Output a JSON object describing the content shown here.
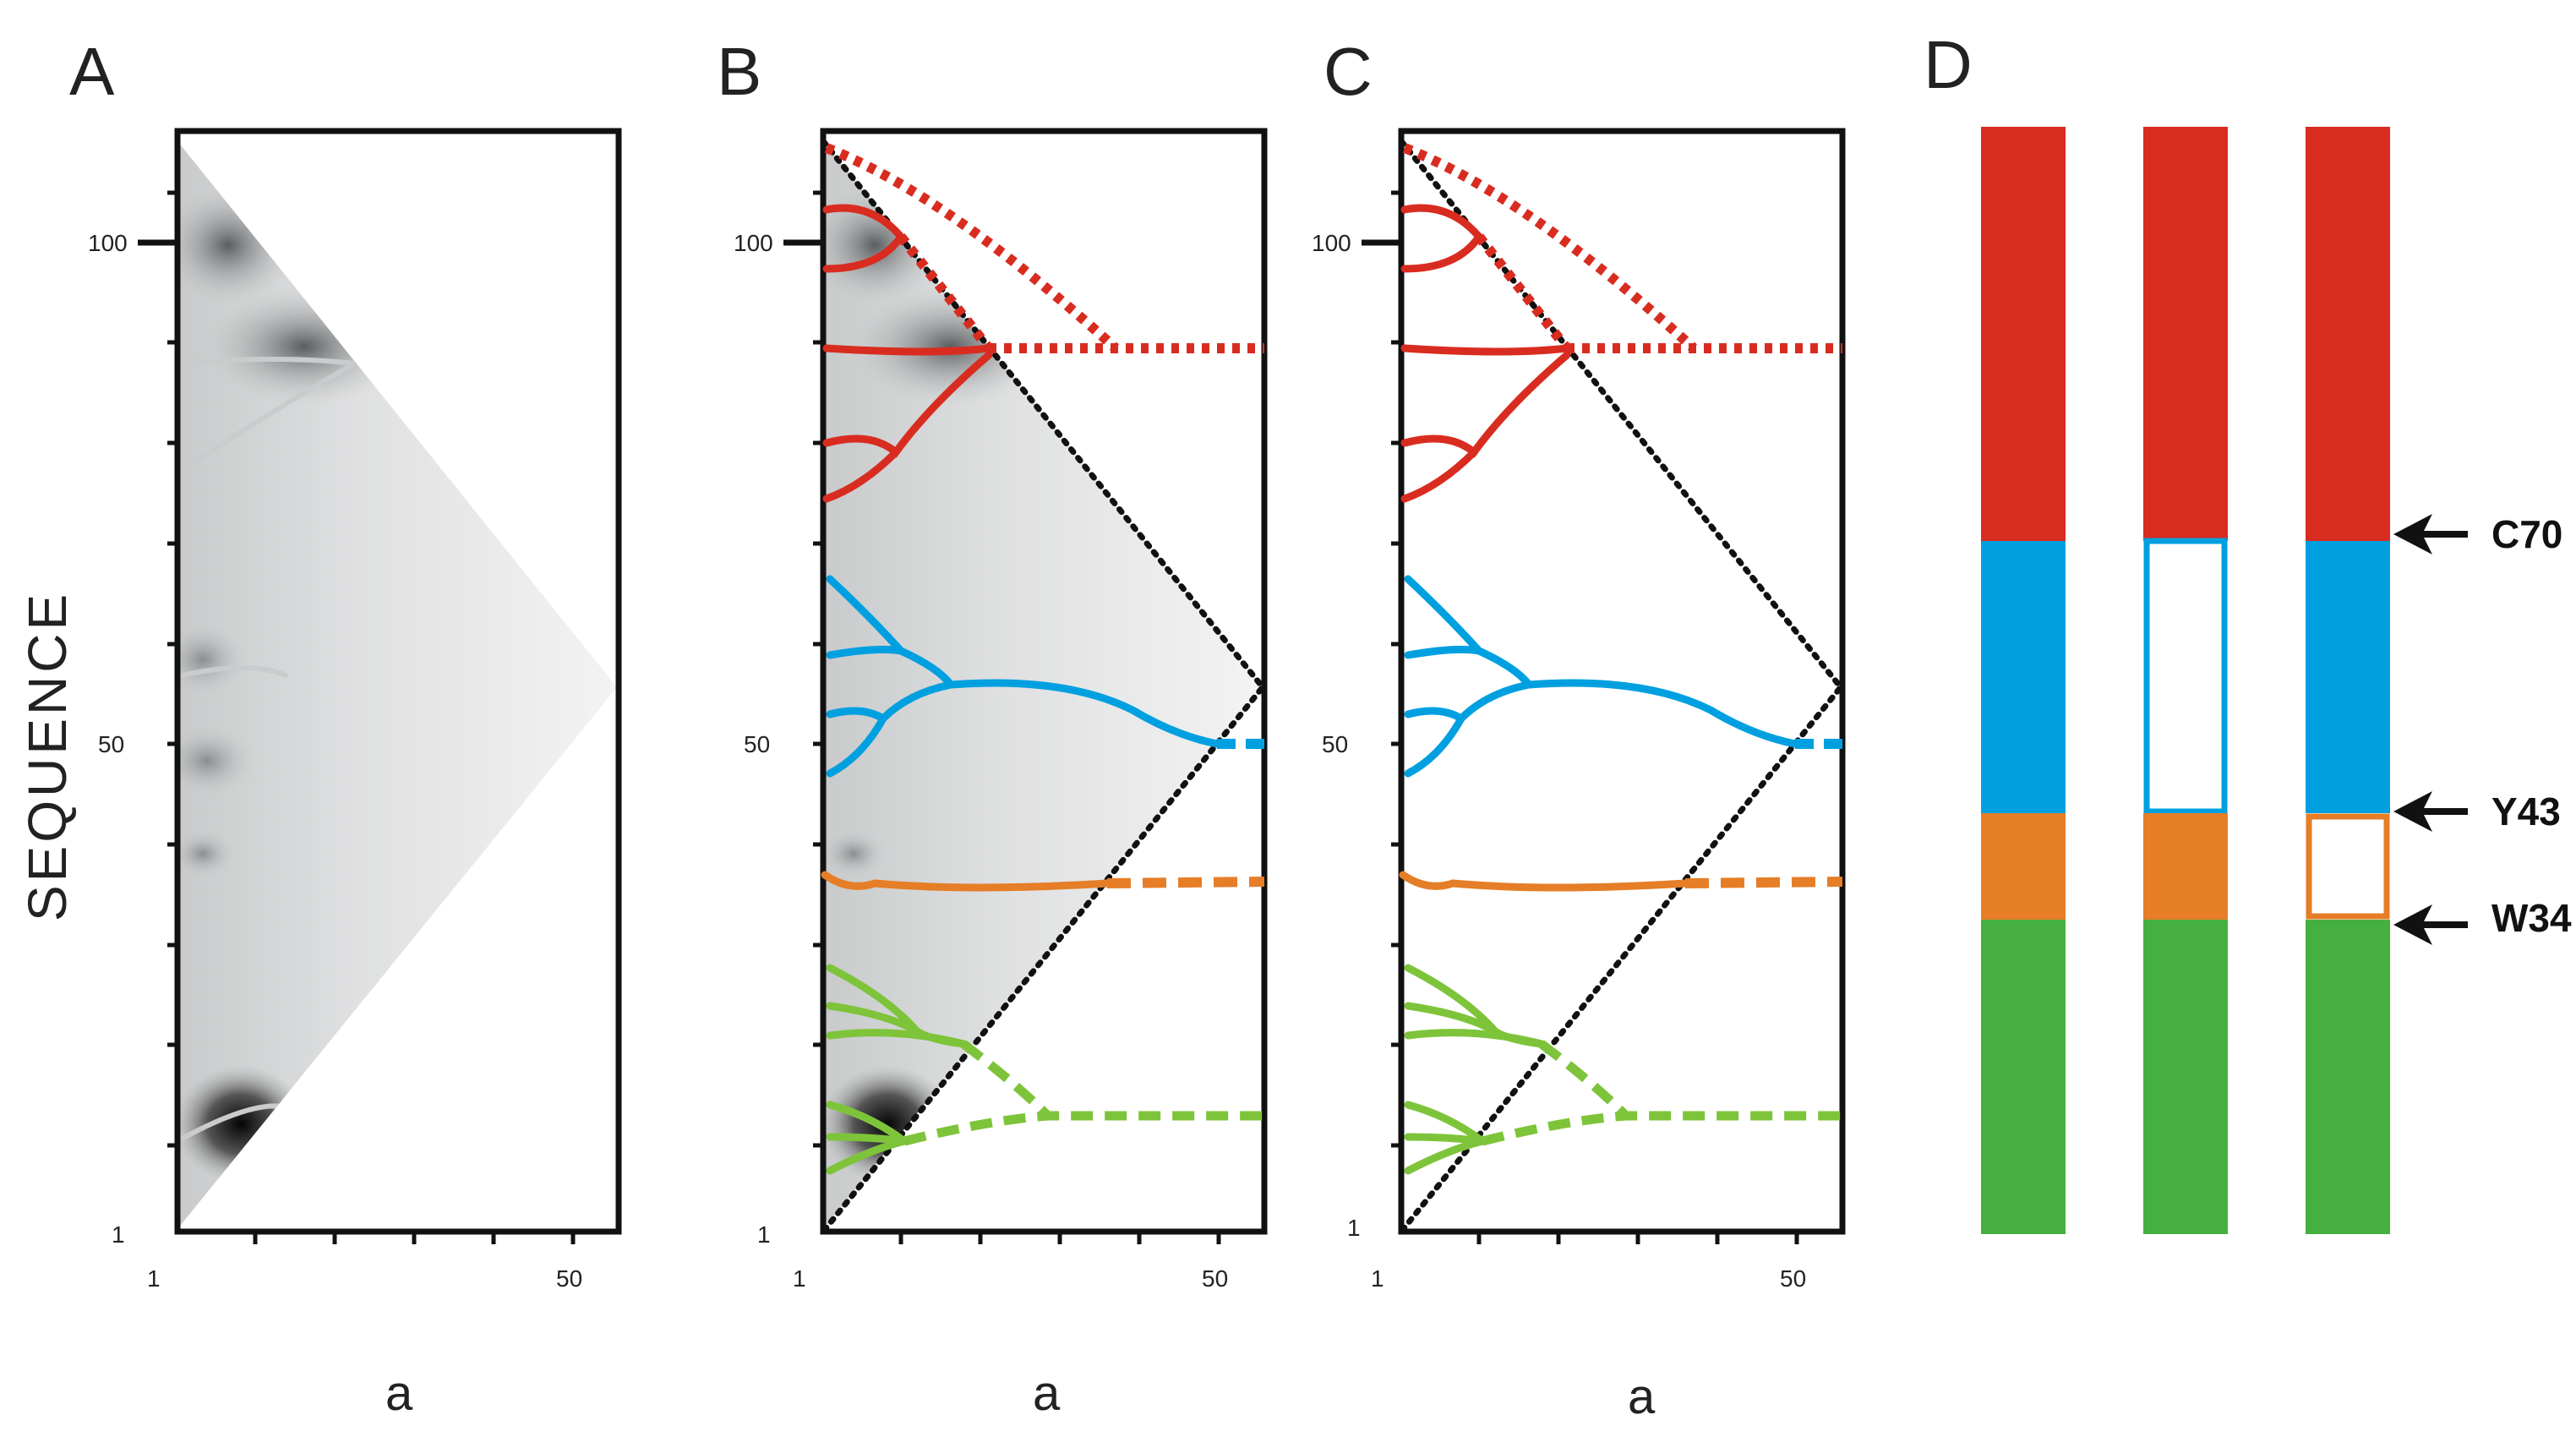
{
  "panels": {
    "A": {
      "label": "A"
    },
    "B": {
      "label": "B"
    },
    "C": {
      "label": "C"
    },
    "D": {
      "label": "D"
    }
  },
  "axes": {
    "y_title": "SEQUENCE",
    "x_title": "a",
    "y_ticks": [
      "100",
      "50",
      "1"
    ],
    "x_ticks": [
      "1",
      "50"
    ]
  },
  "domains": {
    "colors": {
      "red": "#d92c20",
      "blue": "#00a0e0",
      "orange": "#e57e27",
      "green": "#45b040"
    },
    "markers": [
      "C70",
      "Y43",
      "W34"
    ]
  },
  "chart_data": {
    "type": "diagram",
    "title": "",
    "xlabel": "a",
    "ylabel": "SEQUENCE",
    "xlim": [
      1,
      56
    ],
    "ylim": [
      1,
      110
    ],
    "domain_boundaries": [
      {
        "name": "green",
        "start": 1,
        "end": 32
      },
      {
        "name": "orange",
        "start": 32,
        "end": 43
      },
      {
        "name": "blue",
        "start": 43,
        "end": 70
      },
      {
        "name": "red",
        "start": 70,
        "end": 110
      }
    ]
  }
}
